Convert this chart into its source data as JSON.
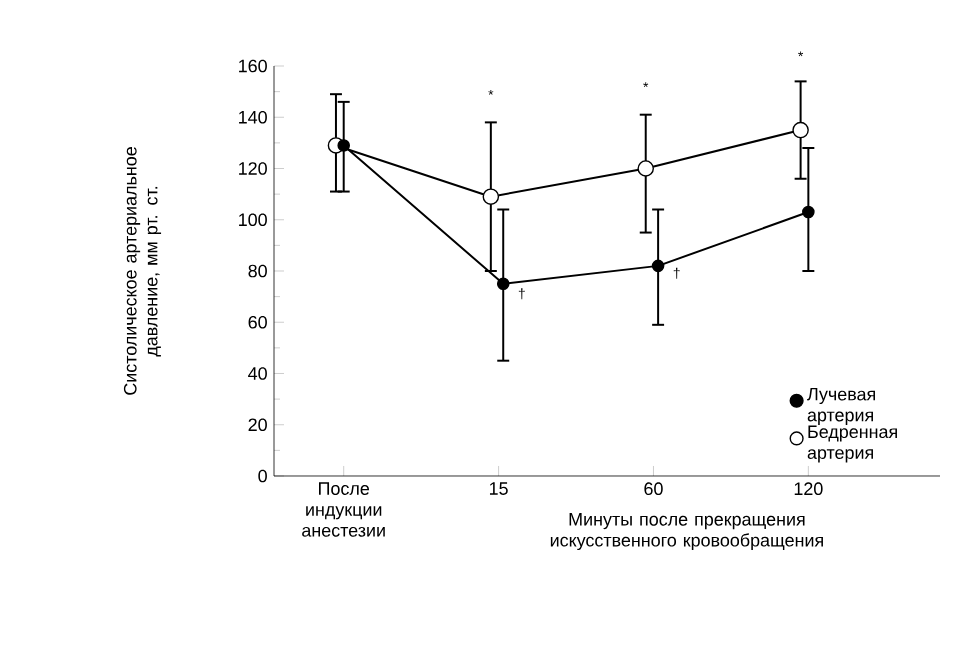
{
  "chart_data": {
    "type": "line",
    "xlabel": "Минуты после прекращения искусственного кровообращения",
    "ylabel": "Систолическое артериальное давление, мм рт. ст.",
    "categories": [
      "После индукции анестезии",
      "15",
      "60",
      "120"
    ],
    "series": [
      {
        "name": "Лучевая артерия",
        "color": "#000000",
        "values": [
          129,
          75,
          82,
          103
        ],
        "errors": [
          [
            111,
            146
          ],
          [
            45,
            104
          ],
          [
            59,
            104
          ],
          [
            80,
            128
          ]
        ]
      },
      {
        "name": "Бедренная артерия",
        "color": "#000000",
        "values": [
          129,
          109,
          120,
          135
        ],
        "errors": [
          [
            111,
            149
          ],
          [
            80,
            138
          ],
          [
            95,
            141
          ],
          [
            116,
            154
          ]
        ]
      }
    ],
    "ylim": [
      0,
      160
    ],
    "yticks": [
      0,
      20,
      40,
      60,
      80,
      100,
      120,
      140,
      160
    ],
    "marker": "circle",
    "legend": "bottom right",
    "grid": false,
    "annotations": [
      "*",
      "*",
      "*",
      "†",
      "†"
    ]
  }
}
